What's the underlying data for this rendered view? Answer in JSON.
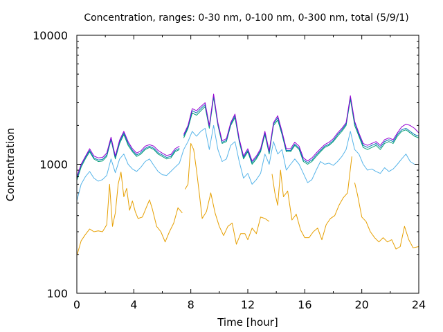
{
  "chart_data": {
    "type": "line",
    "title": "Concentration, ranges: 0-30 nm, 0-100 nm, 0-300 nm, total (5/9/1)",
    "xlabel": "Time [hour]",
    "ylabel": "Concentration",
    "xlim": [
      0,
      24
    ],
    "ylim": [
      100,
      10000
    ],
    "yscale": "log",
    "grid": false,
    "legend": "none",
    "x_ticks": [
      "0",
      "4",
      "8",
      "12",
      "16",
      "20",
      "24"
    ],
    "y_ticks": [
      "100",
      "1000",
      "10000"
    ],
    "series": [
      {
        "color": "#e69f00",
        "x": [
          0,
          0.3,
          0.6,
          0.9,
          1.2,
          1.5,
          1.8,
          2.1,
          2.3,
          2.5,
          2.7,
          2.9,
          3.1,
          3.3,
          3.5,
          3.7,
          3.9,
          4.1,
          4.3,
          4.6,
          4.9,
          5.1,
          5.3,
          5.6,
          5.9,
          6.2,
          6.5,
          6.8,
          7.1,
          7.4,
          null,
          7.6,
          7.8,
          8.0,
          8.2,
          8.4,
          8.6,
          8.8,
          9.1,
          9.4,
          9.7,
          10.0,
          10.3,
          10.6,
          10.9,
          11.2,
          11.5,
          11.8,
          12.0,
          12.3,
          12.6,
          12.9,
          13.2,
          13.5,
          null,
          13.7,
          13.9,
          14.1,
          14.3,
          14.5,
          14.8,
          15.1,
          15.4,
          15.7,
          16.0,
          16.3,
          16.6,
          16.9,
          17.2,
          17.5,
          17.8,
          18.1,
          18.4,
          18.7,
          19.0,
          19.3,
          null,
          19.5,
          19.7,
          20.0,
          20.3,
          20.6,
          20.9,
          21.2,
          21.5,
          21.8,
          22.1,
          22.4,
          22.7,
          23.0,
          23.3,
          23.6,
          24.0
        ],
        "y": [
          195,
          255,
          285,
          315,
          300,
          305,
          300,
          340,
          700,
          330,
          420,
          700,
          870,
          560,
          650,
          440,
          520,
          430,
          380,
          390,
          470,
          530,
          450,
          330,
          300,
          250,
          300,
          350,
          460,
          420,
          null,
          640,
          700,
          1450,
          1300,
          900,
          590,
          380,
          430,
          600,
          420,
          330,
          280,
          330,
          350,
          240,
          290,
          290,
          260,
          320,
          290,
          390,
          380,
          360,
          null,
          840,
          600,
          480,
          900,
          560,
          620,
          370,
          410,
          310,
          270,
          270,
          300,
          320,
          260,
          340,
          380,
          400,
          480,
          550,
          600,
          1150,
          null,
          720,
          580,
          390,
          360,
          300,
          270,
          250,
          270,
          250,
          260,
          220,
          230,
          330,
          260,
          225,
          230
        ]
      },
      {
        "color": "#56b4e9",
        "x": [
          0,
          0.3,
          0.6,
          0.9,
          1.2,
          1.5,
          1.8,
          2.1,
          2.4,
          2.7,
          3.0,
          3.3,
          3.6,
          3.9,
          4.2,
          4.5,
          4.8,
          5.1,
          5.4,
          5.7,
          6.0,
          6.3,
          6.6,
          6.9,
          7.2,
          7.5,
          7.8,
          8.1,
          8.4,
          8.7,
          9.0,
          9.3,
          9.6,
          9.9,
          10.2,
          10.5,
          10.8,
          11.1,
          11.4,
          11.7,
          12.0,
          12.3,
          12.6,
          12.9,
          13.2,
          13.5,
          13.8,
          14.1,
          14.4,
          14.7,
          15.0,
          15.3,
          15.6,
          15.9,
          16.2,
          16.5,
          16.8,
          17.1,
          17.4,
          17.7,
          18.0,
          18.3,
          18.6,
          18.9,
          19.2,
          19.5,
          19.8,
          20.1,
          20.4,
          20.7,
          21.0,
          21.3,
          21.6,
          21.9,
          22.2,
          22.5,
          22.8,
          23.1,
          23.4,
          23.7,
          24.0
        ],
        "y": [
          520,
          700,
          800,
          880,
          780,
          740,
          760,
          820,
          1100,
          860,
          1100,
          1200,
          1000,
          920,
          880,
          950,
          1050,
          1100,
          980,
          880,
          830,
          820,
          880,
          950,
          1020,
          1300,
          1500,
          1800,
          1650,
          1800,
          1900,
          1300,
          2000,
          1300,
          1050,
          1100,
          1400,
          1500,
          1050,
          780,
          850,
          700,
          760,
          850,
          1200,
          1000,
          1500,
          1200,
          1300,
          900,
          1000,
          1100,
          1000,
          850,
          720,
          760,
          900,
          1050,
          1000,
          1020,
          980,
          1050,
          1150,
          1300,
          1800,
          1300,
          1200,
          1000,
          900,
          920,
          880,
          850,
          940,
          880,
          920,
          1000,
          1100,
          1200,
          1050,
          1000,
          1000
        ]
      },
      {
        "color": "#009e73",
        "x": [
          0,
          0.3,
          0.6,
          0.9,
          1.2,
          1.5,
          1.8,
          2.1,
          2.4,
          2.7,
          3.0,
          3.3,
          3.6,
          3.9,
          4.2,
          4.5,
          4.8,
          5.1,
          5.4,
          5.7,
          6.0,
          6.3,
          6.6,
          6.9,
          7.2,
          null,
          7.5,
          7.8,
          8.1,
          8.4,
          8.7,
          9.0,
          9.3,
          9.6,
          9.9,
          10.2,
          10.5,
          10.8,
          11.1,
          11.4,
          11.7,
          12.0,
          12.3,
          12.6,
          12.9,
          13.2,
          13.5,
          13.8,
          14.1,
          14.4,
          14.7,
          15.0,
          15.3,
          15.6,
          15.9,
          16.2,
          16.5,
          16.8,
          17.1,
          17.4,
          17.7,
          18.0,
          18.3,
          18.6,
          18.9,
          19.2,
          19.5,
          19.8,
          20.1,
          20.4,
          20.7,
          21.0,
          21.3,
          21.6,
          21.9,
          22.2,
          22.5,
          22.8,
          23.1,
          23.4,
          23.7,
          24.0
        ],
        "y": [
          750,
          950,
          1100,
          1250,
          1100,
          1050,
          1060,
          1150,
          1550,
          1100,
          1450,
          1700,
          1400,
          1250,
          1150,
          1200,
          1300,
          1350,
          1300,
          1200,
          1150,
          1100,
          1120,
          1250,
          1300,
          null,
          1600,
          1900,
          2500,
          2400,
          2600,
          2800,
          1900,
          3300,
          2000,
          1450,
          1500,
          2000,
          2300,
          1500,
          1100,
          1250,
          1000,
          1100,
          1250,
          1700,
          1200,
          2000,
          2200,
          1700,
          1250,
          1250,
          1400,
          1300,
          1050,
          1000,
          1050,
          1150,
          1250,
          1350,
          1400,
          1500,
          1650,
          1800,
          2000,
          3200,
          2000,
          1650,
          1350,
          1300,
          1350,
          1400,
          1300,
          1450,
          1500,
          1450,
          1650,
          1800,
          1850,
          1750,
          1650,
          1600
        ]
      },
      {
        "color": "#0072b2",
        "x": [
          0,
          0.3,
          0.6,
          0.9,
          1.2,
          1.5,
          1.8,
          2.1,
          2.4,
          2.7,
          3.0,
          3.3,
          3.6,
          3.9,
          4.2,
          4.5,
          4.8,
          5.1,
          5.4,
          5.7,
          6.0,
          6.3,
          6.6,
          6.9,
          7.2,
          null,
          7.5,
          7.8,
          8.1,
          8.4,
          8.7,
          9.0,
          9.3,
          9.6,
          9.9,
          10.2,
          10.5,
          10.8,
          11.1,
          11.4,
          11.7,
          12.0,
          12.3,
          12.6,
          12.9,
          13.2,
          13.5,
          13.8,
          14.1,
          14.4,
          14.7,
          15.0,
          15.3,
          15.6,
          15.9,
          16.2,
          16.5,
          16.8,
          17.1,
          17.4,
          17.7,
          18.0,
          18.3,
          18.6,
          18.9,
          19.2,
          19.5,
          19.8,
          20.1,
          20.4,
          20.7,
          21.0,
          21.3,
          21.6,
          21.9,
          22.2,
          22.5,
          22.8,
          23.1,
          23.4,
          23.7,
          24.0
        ],
        "y": [
          780,
          980,
          1130,
          1280,
          1120,
          1080,
          1090,
          1180,
          1580,
          1130,
          1500,
          1750,
          1450,
          1280,
          1180,
          1230,
          1330,
          1380,
          1330,
          1230,
          1180,
          1130,
          1150,
          1280,
          1330,
          null,
          1650,
          1950,
          2600,
          2500,
          2700,
          2900,
          1950,
          3400,
          2050,
          1480,
          1530,
          2050,
          2380,
          1530,
          1130,
          1280,
          1030,
          1130,
          1280,
          1750,
          1230,
          2050,
          2300,
          1750,
          1280,
          1280,
          1430,
          1330,
          1080,
          1030,
          1080,
          1180,
          1280,
          1380,
          1430,
          1530,
          1700,
          1850,
          2050,
          3300,
          2100,
          1700,
          1400,
          1350,
          1400,
          1450,
          1350,
          1500,
          1550,
          1500,
          1700,
          1850,
          1900,
          1800,
          1700,
          1650
        ]
      },
      {
        "color": "#9400d3",
        "x": [
          0,
          0.3,
          0.6,
          0.9,
          1.2,
          1.5,
          1.8,
          2.1,
          2.4,
          2.7,
          3.0,
          3.3,
          3.6,
          3.9,
          4.2,
          4.5,
          4.8,
          5.1,
          5.4,
          5.7,
          6.0,
          6.3,
          6.6,
          6.9,
          7.2,
          null,
          7.5,
          7.8,
          8.1,
          8.4,
          8.7,
          9.0,
          9.3,
          9.6,
          9.9,
          10.2,
          10.5,
          10.8,
          11.1,
          11.4,
          11.7,
          12.0,
          12.3,
          12.6,
          12.9,
          13.2,
          13.5,
          13.8,
          14.1,
          14.4,
          14.7,
          15.0,
          15.3,
          15.6,
          15.9,
          16.2,
          16.5,
          16.8,
          17.1,
          17.4,
          17.7,
          18.0,
          18.3,
          18.6,
          18.9,
          19.2,
          19.5,
          19.8,
          20.1,
          20.4,
          20.7,
          21.0,
          21.3,
          21.6,
          21.9,
          22.2,
          22.5,
          22.8,
          23.1,
          23.4,
          23.7,
          24.0
        ],
        "y": [
          800,
          1000,
          1150,
          1320,
          1160,
          1120,
          1130,
          1220,
          1620,
          1160,
          1540,
          1800,
          1500,
          1320,
          1220,
          1270,
          1380,
          1420,
          1380,
          1280,
          1220,
          1170,
          1190,
          1320,
          1380,
          null,
          1700,
          2000,
          2700,
          2600,
          2800,
          3000,
          2000,
          3500,
          2100,
          1520,
          1580,
          2100,
          2450,
          1580,
          1160,
          1320,
          1060,
          1160,
          1320,
          1800,
          1270,
          2100,
          2380,
          1800,
          1320,
          1320,
          1480,
          1380,
          1120,
          1060,
          1120,
          1220,
          1320,
          1420,
          1480,
          1580,
          1750,
          1900,
          2100,
          3400,
          2150,
          1750,
          1450,
          1400,
          1450,
          1500,
          1400,
          1550,
          1600,
          1550,
          1750,
          1950,
          2050,
          2000,
          1900,
          1750
        ]
      }
    ]
  }
}
